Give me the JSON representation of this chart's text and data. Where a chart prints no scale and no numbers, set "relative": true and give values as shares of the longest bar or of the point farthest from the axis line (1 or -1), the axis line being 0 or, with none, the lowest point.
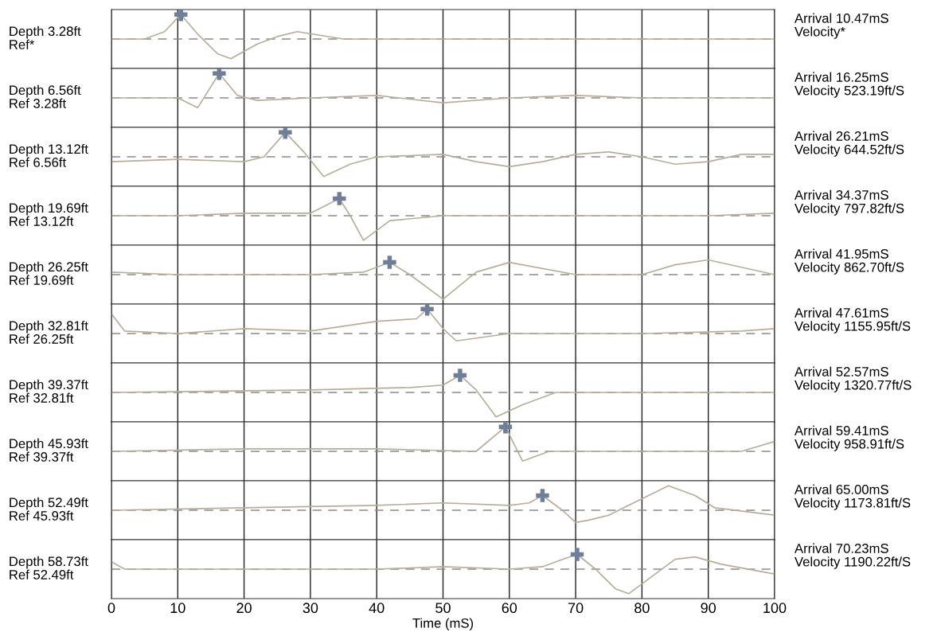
{
  "chart_data": [
    {
      "type": "line",
      "relative": true,
      "xlim": [
        0,
        100
      ],
      "xticks": [
        0,
        10,
        20,
        30,
        40,
        50,
        60,
        70,
        80,
        90,
        100
      ],
      "tick_labels": false,
      "grid": "x",
      "ylabel": "Depth 3.28ft\nRef*",
      "ref_lines": [
        {
          "axis": "y",
          "value": 0,
          "color": "#8a8a8a",
          "line_style": "dashed"
        }
      ],
      "annotations": [
        "Arrival 10.47mS\nVelocity*"
      ],
      "series": [
        {
          "type": "line",
          "color": "#b8ad98",
          "x": [
            0,
            5,
            8,
            10.47,
            13,
            16,
            18,
            22,
            25,
            28,
            35,
            50,
            60,
            70,
            80,
            90,
            100
          ],
          "values": [
            0,
            0,
            0.3,
            1,
            0.2,
            -0.6,
            -0.8,
            -0.2,
            0.1,
            0.3,
            0,
            0,
            0,
            0,
            0,
            0,
            0
          ]
        },
        {
          "type": "scatter",
          "marker": "cross",
          "color": "#6f7f99",
          "x": [
            10.47
          ],
          "values": [
            1
          ]
        }
      ]
    },
    {
      "type": "line",
      "relative": true,
      "xlim": [
        0,
        100
      ],
      "xticks": [
        0,
        10,
        20,
        30,
        40,
        50,
        60,
        70,
        80,
        90,
        100
      ],
      "tick_labels": false,
      "grid": "x",
      "ylabel": "Depth 6.56ft\nRef 3.28ft",
      "ref_lines": [
        {
          "axis": "y",
          "value": 0,
          "color": "#8a8a8a",
          "line_style": "dashed"
        }
      ],
      "annotations": [
        "Arrival 16.25mS\nVelocity 523.19ft/S"
      ],
      "series": [
        {
          "type": "line",
          "color": "#b8ad98",
          "x": [
            0,
            10,
            13,
            16.25,
            19,
            22,
            30,
            40,
            50,
            60,
            70,
            80,
            90,
            100
          ],
          "values": [
            0,
            0,
            -0.4,
            1,
            0.1,
            -0.1,
            0,
            0.1,
            -0.2,
            0,
            0.1,
            0,
            0,
            0
          ]
        },
        {
          "type": "scatter",
          "marker": "cross",
          "color": "#6f7f99",
          "x": [
            16.25
          ],
          "values": [
            1
          ]
        }
      ]
    },
    {
      "type": "line",
      "relative": true,
      "xlim": [
        0,
        100
      ],
      "xticks": [
        0,
        10,
        20,
        30,
        40,
        50,
        60,
        70,
        80,
        90,
        100
      ],
      "tick_labels": false,
      "grid": "x",
      "ylabel": "Depth 13.12ft\nRef 6.56ft",
      "ref_lines": [
        {
          "axis": "y",
          "value": 0,
          "color": "#8a8a8a",
          "line_style": "dashed"
        }
      ],
      "annotations": [
        "Arrival 26.21mS\nVelocity 644.52ft/S"
      ],
      "series": [
        {
          "type": "line",
          "color": "#b8ad98",
          "x": [
            0,
            10,
            20,
            23,
            26.21,
            29,
            32,
            36,
            40,
            50,
            55,
            60,
            65,
            70,
            75,
            80,
            85,
            90,
            95,
            100
          ],
          "values": [
            -0.2,
            -0.1,
            -0.2,
            0,
            1,
            0.2,
            -0.8,
            -0.3,
            0,
            0.1,
            -0.2,
            -0.4,
            -0.2,
            0.1,
            0.2,
            0,
            -0.3,
            -0.2,
            0.1,
            0.1
          ]
        },
        {
          "type": "scatter",
          "marker": "cross",
          "color": "#6f7f99",
          "x": [
            26.21
          ],
          "values": [
            1
          ]
        }
      ]
    },
    {
      "type": "line",
      "relative": true,
      "xlim": [
        0,
        100
      ],
      "xticks": [
        0,
        10,
        20,
        30,
        40,
        50,
        60,
        70,
        80,
        90,
        100
      ],
      "tick_labels": false,
      "grid": "x",
      "ylabel": "Depth 19.69ft\nRef 13.12ft",
      "ref_lines": [
        {
          "axis": "y",
          "value": 0,
          "color": "#8a8a8a",
          "line_style": "dashed"
        }
      ],
      "annotations": [
        "Arrival 34.37mS\nVelocity 797.82ft/S"
      ],
      "series": [
        {
          "type": "line",
          "color": "#b8ad98",
          "x": [
            0,
            10,
            20,
            30,
            34.37,
            36,
            38,
            42,
            50,
            60,
            70,
            80,
            90,
            100
          ],
          "values": [
            0,
            0,
            0.1,
            0.1,
            0.7,
            0,
            -1,
            -0.2,
            0,
            0,
            0,
            0,
            0,
            0.1
          ]
        },
        {
          "type": "scatter",
          "marker": "cross",
          "color": "#6f7f99",
          "x": [
            34.37
          ],
          "values": [
            0.7
          ]
        }
      ]
    },
    {
      "type": "line",
      "relative": true,
      "xlim": [
        0,
        100
      ],
      "xticks": [
        0,
        10,
        20,
        30,
        40,
        50,
        60,
        70,
        80,
        90,
        100
      ],
      "tick_labels": false,
      "grid": "x",
      "ylabel": "Depth 26.25ft\nRef 19.69ft",
      "ref_lines": [
        {
          "axis": "y",
          "value": 0,
          "color": "#8a8a8a",
          "line_style": "dashed"
        }
      ],
      "annotations": [
        "Arrival 41.95mS\nVelocity 862.70ft/S"
      ],
      "series": [
        {
          "type": "line",
          "color": "#b8ad98",
          "x": [
            0,
            10,
            30,
            38,
            41.95,
            45,
            50,
            55,
            60,
            70,
            80,
            85,
            90,
            95,
            100
          ],
          "values": [
            0.1,
            0,
            0,
            0.1,
            0.5,
            0,
            -1,
            0.1,
            0.5,
            0,
            0,
            0.4,
            0.6,
            0.3,
            0
          ]
        },
        {
          "type": "scatter",
          "marker": "cross",
          "color": "#6f7f99",
          "x": [
            41.95
          ],
          "values": [
            0.5
          ]
        }
      ]
    },
    {
      "type": "line",
      "relative": true,
      "xlim": [
        0,
        100
      ],
      "xticks": [
        0,
        10,
        20,
        30,
        40,
        50,
        60,
        70,
        80,
        90,
        100
      ],
      "tick_labels": false,
      "grid": "x",
      "ylabel": "Depth 32.81ft\nRef 26.25ft",
      "ref_lines": [
        {
          "axis": "y",
          "value": 0,
          "color": "#8a8a8a",
          "line_style": "dashed"
        }
      ],
      "annotations": [
        "Arrival 47.61mS\nVelocity 1155.95ft/S"
      ],
      "series": [
        {
          "type": "line",
          "color": "#b8ad98",
          "x": [
            0,
            2,
            10,
            20,
            30,
            40,
            46,
            47.61,
            50,
            52,
            60,
            80,
            95,
            100
          ],
          "values": [
            0.8,
            0.1,
            0,
            0.2,
            0.1,
            0.5,
            0.6,
            1,
            0.2,
            -0.3,
            0,
            0,
            0.1,
            0.2
          ]
        },
        {
          "type": "scatter",
          "marker": "cross",
          "color": "#6f7f99",
          "x": [
            47.61
          ],
          "values": [
            1
          ]
        }
      ]
    },
    {
      "type": "line",
      "relative": true,
      "xlim": [
        0,
        100
      ],
      "xticks": [
        0,
        10,
        20,
        30,
        40,
        50,
        60,
        70,
        80,
        90,
        100
      ],
      "tick_labels": false,
      "grid": "x",
      "ylabel": "Depth 39.37ft\nRef 32.81ft",
      "ref_lines": [
        {
          "axis": "y",
          "value": 0,
          "color": "#8a8a8a",
          "line_style": "dashed"
        }
      ],
      "annotations": [
        "Arrival 52.57mS\nVelocity 1320.77ft/S"
      ],
      "series": [
        {
          "type": "line",
          "color": "#b8ad98",
          "x": [
            0,
            30,
            45,
            50,
            52.57,
            55,
            58,
            62,
            67,
            80,
            100
          ],
          "values": [
            0,
            0.1,
            0.2,
            0.3,
            0.7,
            0.1,
            -1,
            -0.5,
            0,
            0,
            0
          ]
        },
        {
          "type": "scatter",
          "marker": "cross",
          "color": "#6f7f99",
          "x": [
            52.57
          ],
          "values": [
            0.7
          ]
        }
      ]
    },
    {
      "type": "line",
      "relative": true,
      "xlim": [
        0,
        100
      ],
      "xticks": [
        0,
        10,
        20,
        30,
        40,
        50,
        60,
        70,
        80,
        90,
        100
      ],
      "tick_labels": false,
      "grid": "x",
      "ylabel": "Depth 45.93ft\nRef 39.37ft",
      "ref_lines": [
        {
          "axis": "y",
          "value": 0,
          "color": "#8a8a8a",
          "line_style": "dashed"
        }
      ],
      "annotations": [
        "Arrival 59.41mS\nVelocity 958.91ft/S"
      ],
      "series": [
        {
          "type": "line",
          "color": "#b8ad98",
          "x": [
            0,
            20,
            40,
            55,
            59.41,
            62,
            66,
            80,
            95,
            100
          ],
          "values": [
            0,
            0.1,
            0.1,
            0,
            1,
            -0.4,
            0,
            0,
            0,
            0.4
          ]
        },
        {
          "type": "scatter",
          "marker": "cross",
          "color": "#6f7f99",
          "x": [
            59.41
          ],
          "values": [
            1
          ]
        }
      ]
    },
    {
      "type": "line",
      "relative": true,
      "xlim": [
        0,
        100
      ],
      "xticks": [
        0,
        10,
        20,
        30,
        40,
        50,
        60,
        70,
        80,
        90,
        100
      ],
      "tick_labels": false,
      "grid": "x",
      "ylabel": "Depth 52.49ft\nRef 45.93ft",
      "ref_lines": [
        {
          "axis": "y",
          "value": 0,
          "color": "#8a8a8a",
          "line_style": "dashed"
        }
      ],
      "annotations": [
        "Arrival 65.00mS\nVelocity 1173.81ft/S"
      ],
      "series": [
        {
          "type": "line",
          "color": "#b8ad98",
          "x": [
            0,
            20,
            40,
            50,
            60,
            63,
            65,
            68,
            70,
            72,
            75,
            78,
            84,
            88,
            91,
            100
          ],
          "values": [
            0,
            0.1,
            0.2,
            0.3,
            0.2,
            0.3,
            0.6,
            0,
            -0.5,
            -0.4,
            -0.2,
            0.2,
            1,
            0.6,
            0.1,
            -0.2
          ]
        },
        {
          "type": "scatter",
          "marker": "cross",
          "color": "#6f7f99",
          "x": [
            65
          ],
          "values": [
            0.6
          ]
        }
      ]
    },
    {
      "type": "line",
      "relative": true,
      "xlim": [
        0,
        100
      ],
      "xticks": [
        0,
        10,
        20,
        30,
        40,
        50,
        60,
        70,
        80,
        90,
        100
      ],
      "xlabel": "Time (mS)",
      "tick_labels": "x",
      "grid": "x",
      "ylabel": "Depth 58.73ft\nRef 52.49ft",
      "ref_lines": [
        {
          "axis": "y",
          "value": 0,
          "color": "#8a8a8a",
          "line_style": "dashed"
        }
      ],
      "annotations": [
        "Arrival 70.23mS\nVelocity 1190.22ft/S"
      ],
      "series": [
        {
          "type": "line",
          "color": "#b8ad98",
          "x": [
            0,
            2,
            20,
            40,
            50,
            60,
            65,
            68,
            70.23,
            73,
            76,
            78,
            82,
            85,
            88,
            92,
            100
          ],
          "values": [
            0.3,
            0,
            0,
            0,
            0.1,
            0,
            0.1,
            0.4,
            0.6,
            0,
            -0.8,
            -1,
            -0.2,
            0.4,
            0.5,
            0.2,
            -0.2
          ]
        },
        {
          "type": "scatter",
          "marker": "cross",
          "color": "#6f7f99",
          "x": [
            70.23
          ],
          "values": [
            0.6
          ]
        }
      ]
    }
  ]
}
